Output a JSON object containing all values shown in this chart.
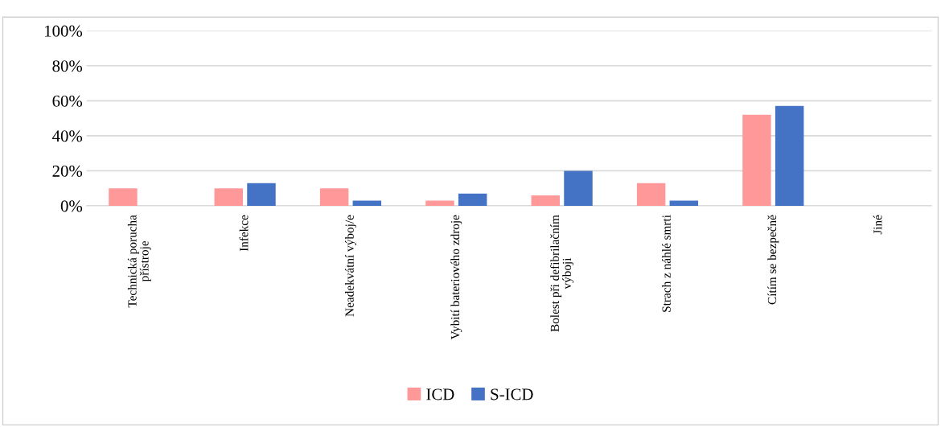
{
  "chart_data": {
    "type": "bar",
    "categories": [
      "Technická porucha\npřístroje",
      "Infekce",
      "Neadekvátní výboj/e",
      "Vybití bateriového zdroje",
      "Bolest při defibrilačním\nvýboji",
      "Strach z náhlé smrti",
      "Cítím se bezpečně",
      "Jiné"
    ],
    "series": [
      {
        "name": "ICD",
        "color": "#ff9999",
        "values": [
          10,
          10,
          10,
          3,
          6,
          13,
          52,
          0
        ]
      },
      {
        "name": "S-ICD",
        "color": "#4472c4",
        "values": [
          0,
          13,
          3,
          7,
          20,
          3,
          57,
          0
        ]
      }
    ],
    "ylim": [
      0,
      100
    ],
    "yticks": [
      {
        "value": 0,
        "label": "0%"
      },
      {
        "value": 20,
        "label": "20%"
      },
      {
        "value": 40,
        "label": "40%"
      },
      {
        "value": 60,
        "label": "60%"
      },
      {
        "value": 80,
        "label": "80%"
      },
      {
        "value": 100,
        "label": "100%"
      }
    ],
    "grid": "y",
    "legend": "bottom"
  }
}
